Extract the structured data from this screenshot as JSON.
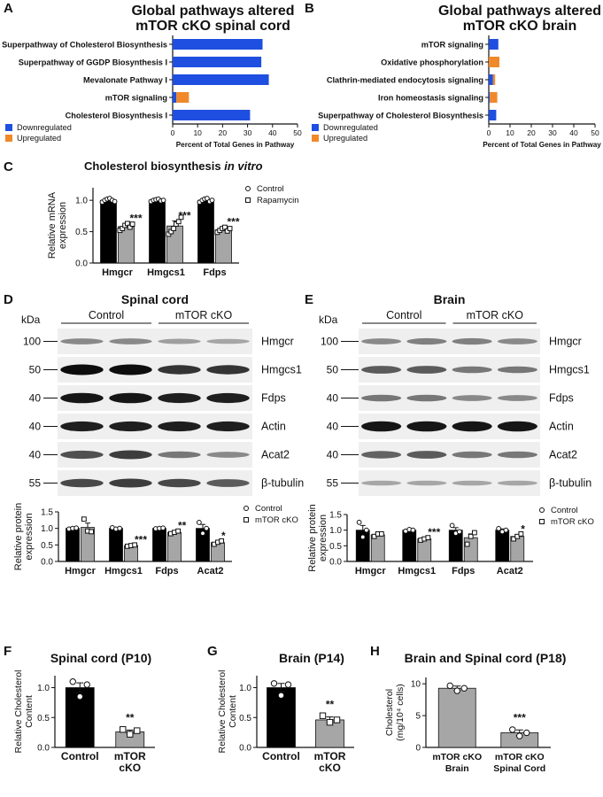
{
  "colors": {
    "down": "#1f4fe0",
    "up": "#f0892a",
    "control": "#000000",
    "treated": "#a6a6a6",
    "blot_bg": "#efefef",
    "band": "#0d0d0d"
  },
  "chart_data": [
    {
      "id": "A",
      "panel": "A",
      "type": "bar",
      "orientation": "horizontal",
      "stacked": true,
      "title_line1": "Global pathways altered",
      "title_line2": "mTOR cKO spinal cord",
      "categories": [
        "Superpathway of Cholesterol Biosynthesis",
        "Superpathway of GGDP Biosynthesis I",
        "Mevalonate Pathway I",
        "mTOR signaling",
        "Cholesterol Biosynthesis I"
      ],
      "series": [
        {
          "name": "Downregulated",
          "values": [
            36,
            35.5,
            38.5,
            1.5,
            31
          ]
        },
        {
          "name": "Upregulated",
          "values": [
            0,
            0,
            0,
            5,
            0
          ]
        }
      ],
      "xlabel": "Percent of Total Genes in Pathway",
      "xlim": [
        0,
        50
      ],
      "xticks": [
        "0",
        "10",
        "20",
        "30",
        "40",
        "50"
      ],
      "legend": [
        "Downregulated",
        "Upregulated"
      ]
    },
    {
      "id": "B",
      "panel": "B",
      "type": "bar",
      "orientation": "horizontal",
      "stacked": true,
      "title_line1": "Global pathways altered",
      "title_line2": "mTOR cKO brain",
      "categories": [
        "mTOR signaling",
        "Oxidative phosphorylation",
        "Clathrin-mediated endocytosis signaling",
        "Iron homeostasis signaling",
        "Superpathway of Cholesterol Biosynthesis"
      ],
      "series": [
        {
          "name": "Downregulated",
          "values": [
            4.5,
            0,
            2,
            0.5,
            3.5
          ]
        },
        {
          "name": "Upregulated",
          "values": [
            0,
            5,
            1,
            3.5,
            0
          ]
        }
      ],
      "xlabel": "Percent of Total Genes in Pathway",
      "xlim": [
        0,
        50
      ],
      "xticks": [
        "0",
        "10",
        "20",
        "30",
        "40",
        "50"
      ],
      "legend": [
        "Downregulated",
        "Upregulated"
      ]
    },
    {
      "id": "C",
      "panel": "C",
      "type": "bar",
      "title_pre": "Cholesterol biosynthesis ",
      "title_em": "in vitro",
      "ylabel_line1": "Relative mRNA",
      "ylabel_line2": "expression",
      "ylim": [
        0,
        1.2
      ],
      "yticks": [
        "0.0",
        "0.5",
        "1.0"
      ],
      "categories": [
        "Hmgcr",
        "Hmgcs1",
        "Fdps"
      ],
      "series": [
        {
          "name": "Control",
          "values": [
            1.0,
            1.0,
            1.0
          ],
          "err": [
            0.03,
            0.02,
            0.03
          ],
          "points": [
            [
              0.97,
              1.0,
              1.02,
              1.03,
              1.0,
              0.98
            ],
            [
              0.98,
              1.0,
              1.01,
              1.02,
              0.99,
              1.0
            ],
            [
              0.97,
              1.0,
              1.02,
              1.03,
              0.98,
              1.0
            ]
          ]
        },
        {
          "name": "Rapamycin",
          "values": [
            0.58,
            0.59,
            0.53
          ],
          "err": [
            0.05,
            0.08,
            0.04
          ],
          "points": [
            [
              0.52,
              0.55,
              0.6,
              0.63,
              0.57,
              0.62
            ],
            [
              0.46,
              0.5,
              0.55,
              0.62,
              0.66,
              0.73
            ],
            [
              0.49,
              0.52,
              0.55,
              0.57,
              0.51,
              0.55
            ]
          ]
        }
      ],
      "sig": [
        "***",
        "***",
        "***"
      ],
      "legend": [
        "Control",
        "Rapamycin"
      ]
    },
    {
      "id": "D",
      "panel": "D",
      "type": "bar",
      "ylabel_line1": "Relative protein",
      "ylabel_line2": "expression",
      "ylim": [
        0,
        1.5
      ],
      "yticks": [
        "0.0",
        "0.5",
        "1.0",
        "1.5"
      ],
      "categories": [
        "Hmgcr",
        "Hmgcs1",
        "Fdps",
        "Acat2"
      ],
      "series": [
        {
          "name": "Control",
          "values": [
            1.0,
            1.0,
            1.0,
            1.0
          ],
          "err": [
            0.02,
            0.02,
            0.02,
            0.12
          ],
          "points": [
            [
              0.98,
              1.0,
              1.01
            ],
            [
              1.02,
              0.98,
              1.0
            ],
            [
              0.99,
              1.0,
              1.01
            ],
            [
              1.18,
              0.85,
              1.0
            ]
          ]
        },
        {
          "name": "mTOR cKO",
          "values": [
            1.03,
            0.48,
            0.88,
            0.57
          ],
          "err": [
            0.13,
            0.02,
            0.04,
            0.04
          ],
          "points": [
            [
              1.28,
              0.92,
              0.9
            ],
            [
              0.46,
              0.48,
              0.5
            ],
            [
              0.84,
              0.88,
              0.92
            ],
            [
              0.52,
              0.58,
              0.62
            ]
          ]
        }
      ],
      "sig": [
        "",
        "***",
        "**",
        "*"
      ],
      "legend": [
        "Control",
        "mTOR cKO"
      ]
    },
    {
      "id": "E",
      "panel": "E",
      "type": "bar",
      "ylabel_line1": "Relative protein",
      "ylabel_line2": "expression",
      "ylim": [
        0,
        1.5
      ],
      "yticks": [
        "0.0",
        "0.5",
        "1.0",
        "1.5"
      ],
      "categories": [
        "Hmgcr",
        "Hmgcs1",
        "Fdps",
        "Acat2"
      ],
      "series": [
        {
          "name": "Control",
          "values": [
            1.0,
            1.0,
            1.0,
            1.0
          ],
          "err": [
            0.15,
            0.03,
            0.08,
            0.04
          ],
          "points": [
            [
              1.25,
              0.78,
              1.0
            ],
            [
              0.97,
              1.02,
              1.0
            ],
            [
              1.15,
              0.9,
              0.95
            ],
            [
              1.05,
              0.95,
              1.0
            ]
          ]
        },
        {
          "name": "mTOR cKO",
          "values": [
            0.85,
            0.72,
            0.76,
            0.8
          ],
          "err": [
            0.05,
            0.04,
            0.12,
            0.06
          ],
          "points": [
            [
              0.8,
              0.88,
              0.88
            ],
            [
              0.68,
              0.72,
              0.76
            ],
            [
              0.55,
              0.8,
              0.92
            ],
            [
              0.72,
              0.8,
              0.88
            ]
          ]
        }
      ],
      "sig": [
        "",
        "***",
        "",
        "*"
      ],
      "legend": [
        "Control",
        "mTOR cKO"
      ]
    },
    {
      "id": "F",
      "panel": "F",
      "type": "bar",
      "title": "Spinal cord (P10)",
      "ylabel_line1": "Relative Cholesterol",
      "ylabel_line2": "Content",
      "ylim": [
        0,
        1.2
      ],
      "yticks": [
        "0.0",
        "0.5",
        "1.0"
      ],
      "categories": [
        "Control",
        "mTOR cKO"
      ],
      "cat_lines": [
        [
          "Control"
        ],
        [
          "mTOR",
          "cKO"
        ]
      ],
      "values": [
        1.0,
        0.26
      ],
      "err": [
        0.08,
        0.03
      ],
      "points": [
        [
          1.1,
          0.85,
          1.05
        ],
        [
          0.3,
          0.22,
          0.28
        ]
      ],
      "sig": [
        "",
        "**"
      ]
    },
    {
      "id": "G",
      "panel": "G",
      "type": "bar",
      "title": "Brain (P14)",
      "ylabel_line1": "Relative Cholesterol",
      "ylabel_line2": "Content",
      "ylim": [
        0,
        1.2
      ],
      "yticks": [
        "0.0",
        "0.5",
        "1.0"
      ],
      "categories": [
        "Control",
        "mTOR cKO"
      ],
      "cat_lines": [
        [
          "Control"
        ],
        [
          "mTOR",
          "cKO"
        ]
      ],
      "values": [
        1.0,
        0.46
      ],
      "err": [
        0.07,
        0.05
      ],
      "points": [
        [
          1.07,
          0.87,
          1.05
        ],
        [
          0.53,
          0.42,
          0.46
        ]
      ],
      "sig": [
        "",
        "**"
      ]
    },
    {
      "id": "H",
      "panel": "H",
      "type": "bar",
      "title": "Brain and Spinal cord (P18)",
      "ylabel_line1": "Cholesterol",
      "ylabel_line2": "(mg/10⁴ cells)",
      "ylim": [
        0,
        11
      ],
      "yticks": [
        "0",
        "5",
        "10"
      ],
      "categories": [
        "mTOR cKO Brain",
        "mTOR cKO Spinal Cord"
      ],
      "cat_lines": [
        [
          "mTOR cKO",
          "Brain"
        ],
        [
          "mTOR cKO",
          "Spinal Cord"
        ]
      ],
      "values": [
        9.3,
        2.3
      ],
      "err": [
        0.35,
        0.45
      ],
      "points": [
        [
          9.7,
          8.9,
          9.3
        ],
        [
          2.8,
          1.8,
          2.3
        ]
      ],
      "sig": [
        "",
        "***"
      ]
    }
  ],
  "blots": [
    {
      "id": "D",
      "panel": "D",
      "title": "Spinal cord",
      "kda_label": "kDa",
      "group_labels": [
        "Control",
        "mTOR cKO"
      ],
      "rows": [
        {
          "kda": "100",
          "protein": "Hmgcr",
          "intensity": [
            0.35,
            0.35,
            0.25,
            0.2
          ]
        },
        {
          "kda": "50",
          "protein": "Hmgcs1",
          "intensity": [
            1.0,
            1.0,
            0.8,
            0.8
          ]
        },
        {
          "kda": "40",
          "protein": "Fdps",
          "intensity": [
            0.95,
            0.95,
            0.9,
            0.9
          ]
        },
        {
          "kda": "40",
          "protein": "Actin",
          "intensity": [
            0.9,
            0.9,
            0.9,
            0.9
          ]
        },
        {
          "kda": "40",
          "protein": "Acat2",
          "intensity": [
            0.65,
            0.75,
            0.45,
            0.35
          ]
        },
        {
          "kda": "55",
          "protein": "β-tubulin",
          "intensity": [
            0.7,
            0.75,
            0.7,
            0.6
          ]
        }
      ]
    },
    {
      "id": "E",
      "panel": "E",
      "title": "Brain",
      "kda_label": "kDa",
      "group_labels": [
        "Control",
        "mTOR cKO"
      ],
      "rows": [
        {
          "kda": "100",
          "protein": "Hmgcr",
          "intensity": [
            0.35,
            0.4,
            0.4,
            0.35
          ]
        },
        {
          "kda": "50",
          "protein": "Hmgcs1",
          "intensity": [
            0.6,
            0.6,
            0.45,
            0.45
          ]
        },
        {
          "kda": "40",
          "protein": "Fdps",
          "intensity": [
            0.45,
            0.45,
            0.35,
            0.35
          ]
        },
        {
          "kda": "40",
          "protein": "Actin",
          "intensity": [
            0.95,
            0.95,
            0.95,
            0.95
          ]
        },
        {
          "kda": "40",
          "protein": "Acat2",
          "intensity": [
            0.55,
            0.6,
            0.45,
            0.45
          ]
        },
        {
          "kda": "55",
          "protein": "β-tubulin",
          "intensity": [
            0.2,
            0.2,
            0.2,
            0.2
          ]
        }
      ]
    }
  ]
}
